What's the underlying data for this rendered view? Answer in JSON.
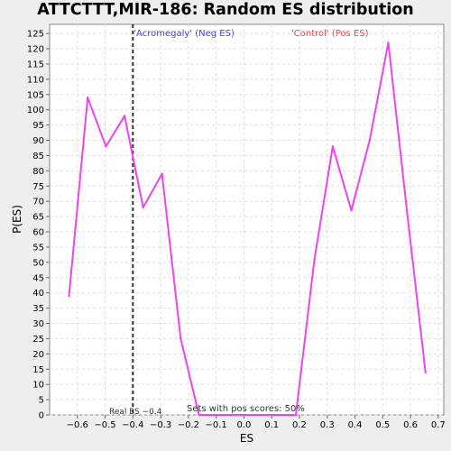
{
  "chart_data": {
    "type": "line",
    "title": "ATTCTTT,MIR-186: Random ES distribution",
    "xlabel": "ES",
    "ylabel": "P(ES)",
    "xlim": [
      -0.7,
      0.72
    ],
    "ylim": [
      0,
      128
    ],
    "x_ticks": [
      -0.6,
      -0.5,
      -0.4,
      -0.3,
      -0.2,
      -0.1,
      0.0,
      0.1,
      0.2,
      0.3,
      0.4,
      0.5,
      0.6,
      0.7
    ],
    "x_tick_labels": [
      "−0.6",
      "−0.5",
      "−0.4",
      "−0.3",
      "−0.2",
      "−0.1",
      "0.0",
      "0.1",
      "0.2",
      "0.3",
      "0.4",
      "0.5",
      "0.6",
      "0.7"
    ],
    "y_ticks": [
      0,
      5,
      10,
      15,
      20,
      25,
      30,
      35,
      40,
      45,
      50,
      55,
      60,
      65,
      70,
      75,
      80,
      85,
      90,
      95,
      100,
      105,
      110,
      115,
      120,
      125
    ],
    "grid": true,
    "series": [
      {
        "color": "#ee44ee",
        "x": [
          -0.63,
          -0.563,
          -0.497,
          -0.43,
          -0.363,
          -0.295,
          -0.228,
          -0.162,
          0.187,
          0.254,
          0.32,
          0.387,
          0.453,
          0.52,
          0.587,
          0.654
        ],
        "y": [
          39,
          104,
          88,
          98,
          68,
          79,
          25,
          0,
          0,
          51,
          88,
          67,
          90,
          122,
          67,
          14
        ]
      }
    ],
    "real_es": -0.4,
    "annotations": {
      "neg_label": "'Acromegaly' (Neg ES)",
      "pos_label": "'Control' (Pos ES)",
      "real_es_label": "Real ES −0.4",
      "pos_scores_label": "Sets with pos scores: 50%"
    },
    "colors": {
      "neg": "#4444dd",
      "pos": "#ee4444",
      "line": "#ee44ee"
    }
  }
}
